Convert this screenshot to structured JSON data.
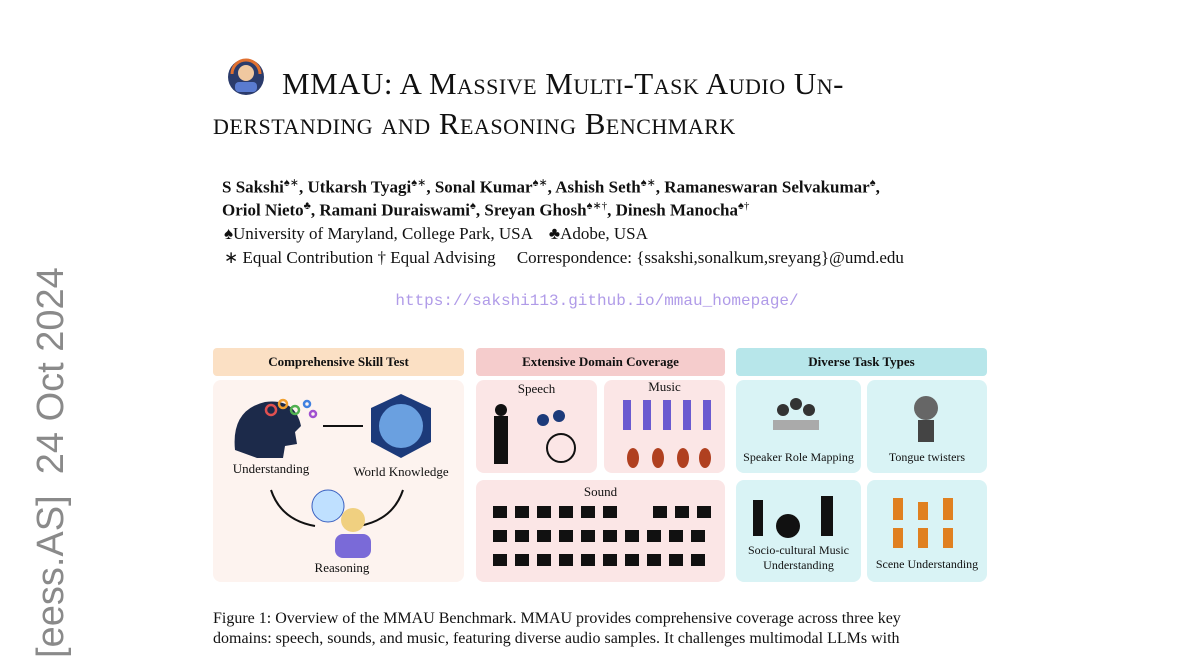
{
  "arxiv_stamp": "[eess.AS]  24 Oct 2024",
  "title": {
    "lines": [
      "MMAU: A Massive Multi-Task Audio Un-",
      "derstanding and Reasoning Benchmark"
    ]
  },
  "authors": {
    "lines": [
      [
        {
          "text": "S Sakshi"
        },
        {
          "sup": "♠∗"
        },
        {
          "text": ", Utkarsh Tyagi"
        },
        {
          "sup": "♠∗"
        },
        {
          "text": ", Sonal Kumar"
        },
        {
          "sup": "♠∗"
        },
        {
          "text": ", Ashish Seth"
        },
        {
          "sup": "♠∗"
        },
        {
          "text": ", Ramaneswaran Selvakumar"
        },
        {
          "sup": "♠"
        },
        {
          "text": ","
        }
      ],
      [
        {
          "text": "Oriol Nieto"
        },
        {
          "sup": "♣"
        },
        {
          "text": ", Ramani Duraiswami"
        },
        {
          "sup": "♠"
        },
        {
          "text": ", Sreyan Ghosh"
        },
        {
          "sup": "♠∗†"
        },
        {
          "text": ", Dinesh Manocha"
        },
        {
          "sup": "♠†"
        }
      ]
    ]
  },
  "affiliations": "♠University of Maryland, College Park, USA    ♣Adobe, USA",
  "contributions": "∗ Equal Contribution † Equal Advising     Correspondence: {ssakshi,sonalkum,sreyang}@umd.edu",
  "url": "https://sakshi113.github.io/mmau_homepage/",
  "figure": {
    "panels": [
      {
        "header": "Comprehensive Skill Test",
        "labels": [
          "Understanding",
          "World Knowledge",
          "Reasoning"
        ]
      },
      {
        "header": "Extensive Domain Coverage",
        "labels": [
          "Speech",
          "Music",
          "Sound"
        ]
      },
      {
        "header": "Diverse Task Types",
        "labels": [
          "Speaker Role Mapping",
          "Tongue twisters",
          "Socio-cultural Music Understanding",
          "Scene Understanding"
        ]
      }
    ],
    "caption": [
      "Figure 1:  Overview of the MMAU Benchmark.  MMAU provides comprehensive coverage across three key",
      "domains:  speech, sounds, and music, featuring diverse audio samples.  It challenges multimodal LLMs with"
    ]
  }
}
